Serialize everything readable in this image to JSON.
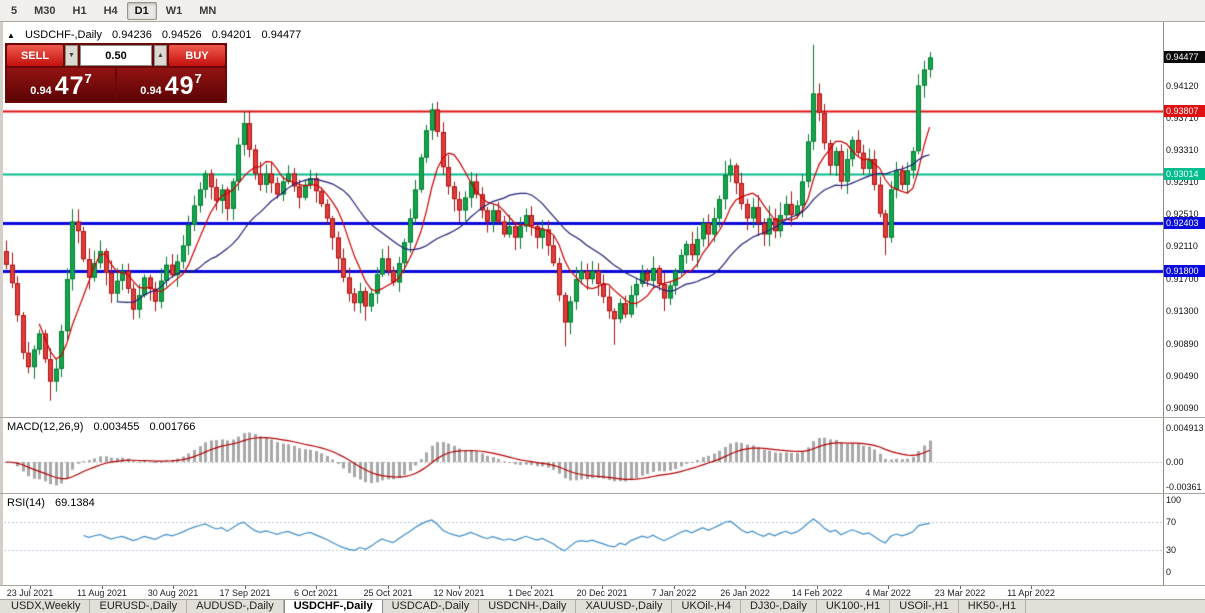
{
  "toolbar": {
    "timeframes": [
      {
        "label": "5",
        "active": false
      },
      {
        "label": "M30",
        "active": false
      },
      {
        "label": "H1",
        "active": false
      },
      {
        "label": "H4",
        "active": false
      },
      {
        "label": "D1",
        "active": true
      },
      {
        "label": "W1",
        "active": false
      },
      {
        "label": "MN",
        "active": false
      }
    ]
  },
  "one_click": {
    "collapse_icon": "▲",
    "sell_label": "SELL",
    "buy_label": "BUY",
    "volume": "0.50",
    "spin_down_icon": "▼",
    "spin_up_icon": "▲",
    "sell_price": {
      "prefix": "0.94",
      "big": "47",
      "sup": "7"
    },
    "buy_price": {
      "prefix": "0.94",
      "big": "49",
      "sup": "7"
    },
    "panel_color": "#6d0808",
    "button_color": "#c4100e"
  },
  "chart_data": {
    "type": "candlestick",
    "title": "USDCHF-,Daily",
    "ohlc_display": {
      "open": "0.94236",
      "high": "0.94526",
      "low": "0.94201",
      "close": "0.94477"
    },
    "first_open": 0.9205,
    "closes": [
      0.9188,
      0.9165,
      0.9125,
      0.9078,
      0.906,
      0.9082,
      0.9102,
      0.907,
      0.9042,
      0.9058,
      0.9105,
      0.917,
      0.9242,
      0.923,
      0.9195,
      0.9172,
      0.919,
      0.9205,
      0.9178,
      0.9152,
      0.9168,
      0.918,
      0.9158,
      0.9132,
      0.915,
      0.9172,
      0.9158,
      0.9142,
      0.9168,
      0.9188,
      0.9175,
      0.9192,
      0.9212,
      0.9238,
      0.9262,
      0.9282,
      0.9302,
      0.9285,
      0.9268,
      0.9282,
      0.9258,
      0.9292,
      0.9338,
      0.9365,
      0.9332,
      0.9302,
      0.9288,
      0.9302,
      0.929,
      0.9276,
      0.9292,
      0.9302,
      0.9286,
      0.9272,
      0.9288,
      0.9296,
      0.928,
      0.9264,
      0.9246,
      0.9222,
      0.9196,
      0.9172,
      0.9152,
      0.914,
      0.9155,
      0.9136,
      0.9152,
      0.9176,
      0.9196,
      0.918,
      0.9166,
      0.919,
      0.9216,
      0.9246,
      0.9282,
      0.9322,
      0.9356,
      0.9382,
      0.9354,
      0.931,
      0.9286,
      0.927,
      0.9256,
      0.9272,
      0.9292,
      0.9276,
      0.9256,
      0.9242,
      0.9256,
      0.9242,
      0.9226,
      0.9236,
      0.9222,
      0.9236,
      0.925,
      0.9236,
      0.9222,
      0.9232,
      0.9212,
      0.919,
      0.915,
      0.9116,
      0.9142,
      0.917,
      0.918,
      0.917,
      0.918,
      0.9164,
      0.9148,
      0.913,
      0.912,
      0.914,
      0.9126,
      0.915,
      0.9164,
      0.9178,
      0.9168,
      0.9184,
      0.9164,
      0.9146,
      0.9162,
      0.918,
      0.92,
      0.9214,
      0.92,
      0.922,
      0.924,
      0.9226,
      0.9246,
      0.927,
      0.93,
      0.9312,
      0.929,
      0.9264,
      0.9246,
      0.926,
      0.924,
      0.9226,
      0.9246,
      0.923,
      0.925,
      0.9264,
      0.925,
      0.9262,
      0.9292,
      0.9342,
      0.9402,
      0.9378,
      0.934,
      0.9312,
      0.933,
      0.9292,
      0.932,
      0.9344,
      0.9328,
      0.9308,
      0.932,
      0.9288,
      0.9252,
      0.9222,
      0.9282,
      0.9306,
      0.9288,
      0.9306,
      0.933,
      0.9412,
      0.9432,
      0.9447
    ],
    "wick_overrides": [
      [
        8,
        "low",
        0.9018
      ],
      [
        12,
        "high",
        0.9252
      ],
      [
        43,
        "high",
        0.938
      ],
      [
        65,
        "low",
        0.9118
      ],
      [
        77,
        "high",
        0.939
      ],
      [
        101,
        "low",
        0.9086
      ],
      [
        110,
        "low",
        0.9088
      ],
      [
        130,
        "high",
        0.9318
      ],
      [
        146,
        "high",
        0.9463
      ],
      [
        159,
        "low",
        0.92
      ],
      [
        165,
        "high",
        0.942
      ],
      [
        167,
        "high",
        0.9452
      ]
    ],
    "horizontal_lines": [
      {
        "price": 0.93807,
        "color": "#e01010",
        "width": 2
      },
      {
        "price": 0.93014,
        "color": "#00bd8e",
        "width": 2
      },
      {
        "price": 0.92403,
        "color": "#0a0ae0",
        "width": 3
      },
      {
        "price": 0.918,
        "color": "#0a0ae0",
        "width": 3
      }
    ],
    "y_axis": {
      "plain_labels": [
        "0.94120",
        "0.93710",
        "0.93310",
        "0.92910",
        "0.92510",
        "0.92110",
        "0.91700",
        "0.91300",
        "0.90890",
        "0.90490",
        "0.90090"
      ],
      "current_price": {
        "value": "0.94477",
        "bg": "#0a0a0a"
      },
      "line_markers": [
        {
          "value": "0.93807",
          "color": "#e01010"
        },
        {
          "value": "0.93014",
          "color": "#00bd8e"
        },
        {
          "value": "0.92403",
          "color": "#0a0ae0"
        },
        {
          "value": "0.91800",
          "color": "#0a0ae0"
        }
      ]
    },
    "x_axis_dates": [
      "23 Jul 2021",
      "11 Aug 2021",
      "30 Aug 2021",
      "17 Sep 2021",
      "6 Oct 2021",
      "25 Oct 2021",
      "12 Nov 2021",
      "1 Dec 2021",
      "20 Dec 2021",
      "7 Jan 2022",
      "26 Jan 2022",
      "14 Feb 2022",
      "4 Mar 2022",
      "23 Mar 2022",
      "11 Apr 2022"
    ],
    "moving_averages": [
      {
        "period": 7,
        "color": "#cc0000"
      },
      {
        "period": 21,
        "color": "#20207a"
      }
    ],
    "indicators": {
      "macd": {
        "label": "MACD(12,26,9)",
        "value_main": "0.003455",
        "value_signal": "0.001766",
        "axis_labels": [
          "0.004913",
          "0.00",
          "-0.00361"
        ],
        "params": [
          12,
          26,
          9
        ],
        "histogram_color": "#a8a8a8",
        "signal_color": "#b40000"
      },
      "rsi": {
        "label": "RSI(14)",
        "value": "69.1384",
        "axis_labels": [
          "100",
          "70",
          "30",
          "0"
        ],
        "period": 14,
        "levels": [
          70,
          30
        ],
        "line_color": "#3f8ecb"
      }
    },
    "style": {
      "up": "#11a84c",
      "up_border": "#077a33",
      "down": "#e43c3c",
      "down_border": "#aa1515",
      "background": "#ffffff"
    }
  },
  "tabs": [
    {
      "label": "USDX,Weekly",
      "active": false
    },
    {
      "label": "EURUSD-,Daily",
      "active": false
    },
    {
      "label": "AUDUSD-,Daily",
      "active": false
    },
    {
      "label": "USDCHF-,Daily",
      "active": true
    },
    {
      "label": "USDCAD-,Daily",
      "active": false
    },
    {
      "label": "USDCNH-,Daily",
      "active": false
    },
    {
      "label": "XAUUSD-,Daily",
      "active": false
    },
    {
      "label": "UKOil-,H4",
      "active": false
    },
    {
      "label": "DJ30-,Daily",
      "active": false
    },
    {
      "label": "UK100-,H1",
      "active": false
    },
    {
      "label": "USOil-,H1",
      "active": false
    },
    {
      "label": "HK50-,H1",
      "active": false
    }
  ]
}
